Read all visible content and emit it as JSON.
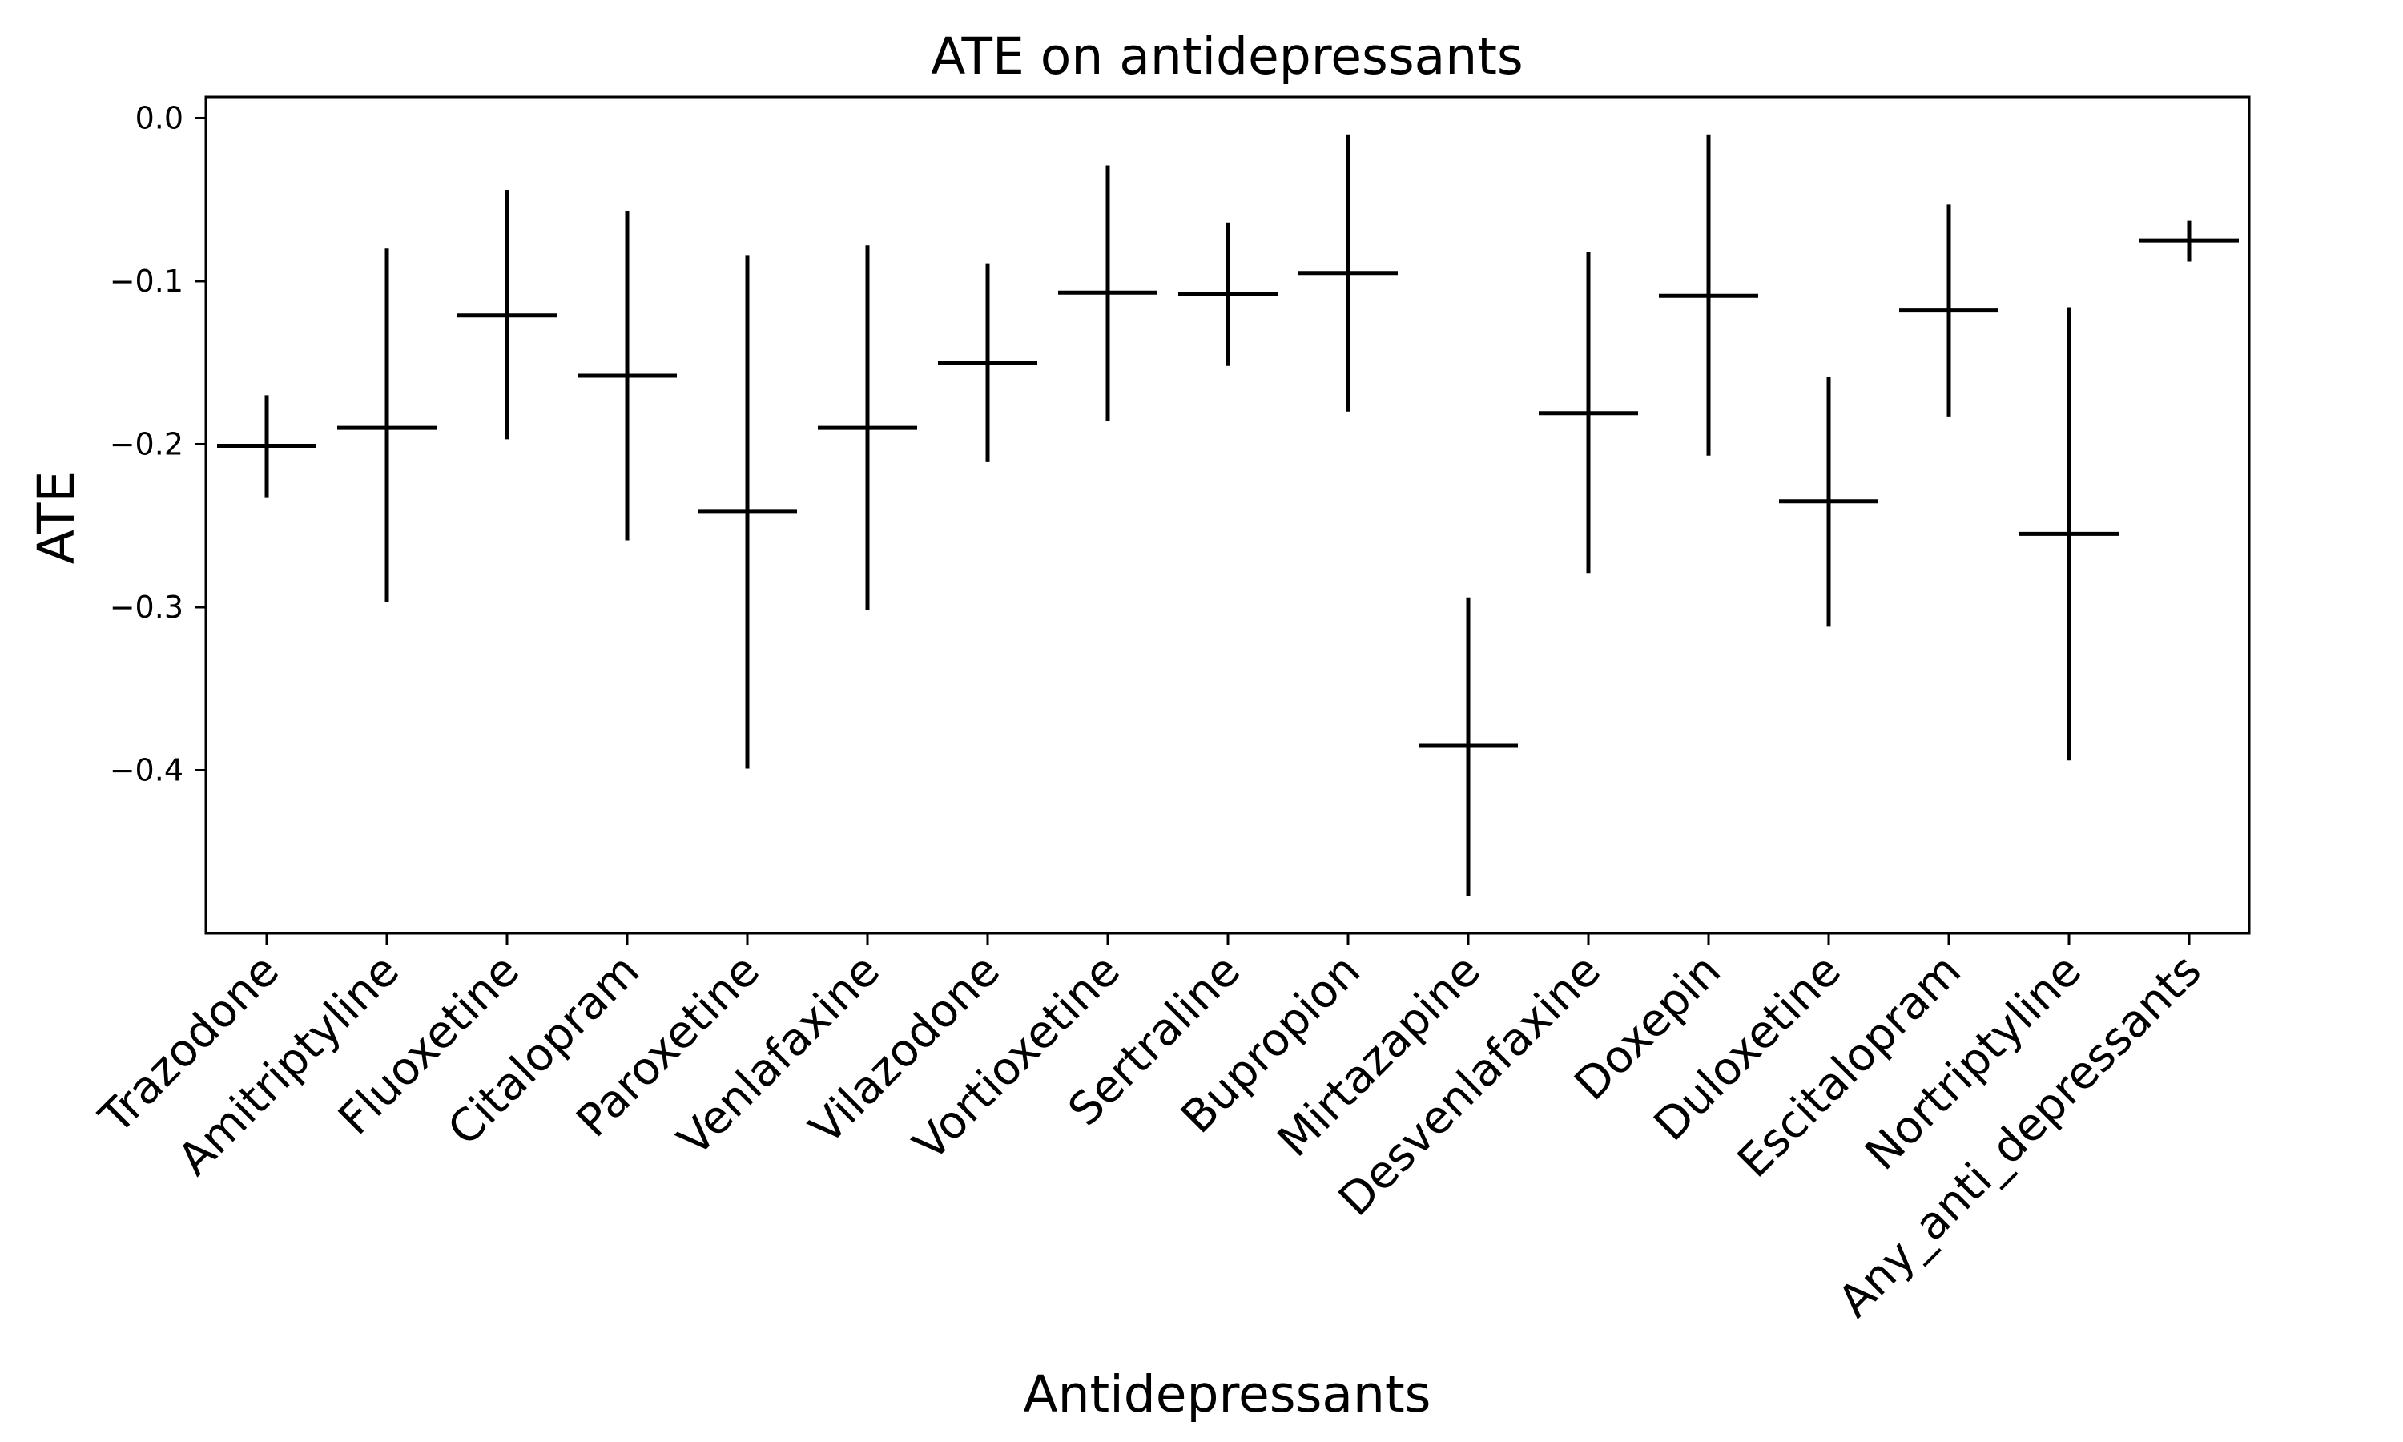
{
  "chart_data": {
    "type": "errorbar",
    "title": "ATE on antidepressants",
    "xlabel": "Antidepressants",
    "ylabel": "ATE",
    "ylim": [
      -0.5,
      0.013
    ],
    "yticks": [
      "0.0",
      "−0.1",
      "−0.2",
      "−0.3",
      "−0.4"
    ],
    "ytick_values": [
      0.0,
      -0.1,
      -0.2,
      -0.3,
      -0.4
    ],
    "grid": false,
    "color": "#000000",
    "categories": [
      "Trazodone",
      "Amitriptyline",
      "Fluoxetine",
      "Citalopram",
      "Paroxetine",
      "Venlafaxine",
      "Vilazodone",
      "Vortioxetine",
      "Sertraline",
      "Bupropion",
      "Mirtazapine",
      "Desvenlafaxine",
      "Doxepin",
      "Duloxetine",
      "Escitalopram",
      "Nortriptyline",
      "Any_anti_depressants"
    ],
    "estimates": [
      -0.201,
      -0.19,
      -0.121,
      -0.158,
      -0.241,
      -0.19,
      -0.15,
      -0.107,
      -0.108,
      -0.095,
      -0.385,
      -0.181,
      -0.109,
      -0.235,
      -0.118,
      -0.255,
      -0.075
    ],
    "lower": [
      -0.233,
      -0.297,
      -0.197,
      -0.259,
      -0.399,
      -0.302,
      -0.211,
      -0.186,
      -0.152,
      -0.18,
      -0.477,
      -0.279,
      -0.207,
      -0.312,
      -0.183,
      -0.394,
      -0.088
    ],
    "upper": [
      -0.17,
      -0.08,
      -0.044,
      -0.057,
      -0.084,
      -0.078,
      -0.089,
      -0.029,
      -0.064,
      -0.01,
      -0.294,
      -0.082,
      -0.01,
      -0.159,
      -0.053,
      -0.116,
      -0.063
    ]
  }
}
